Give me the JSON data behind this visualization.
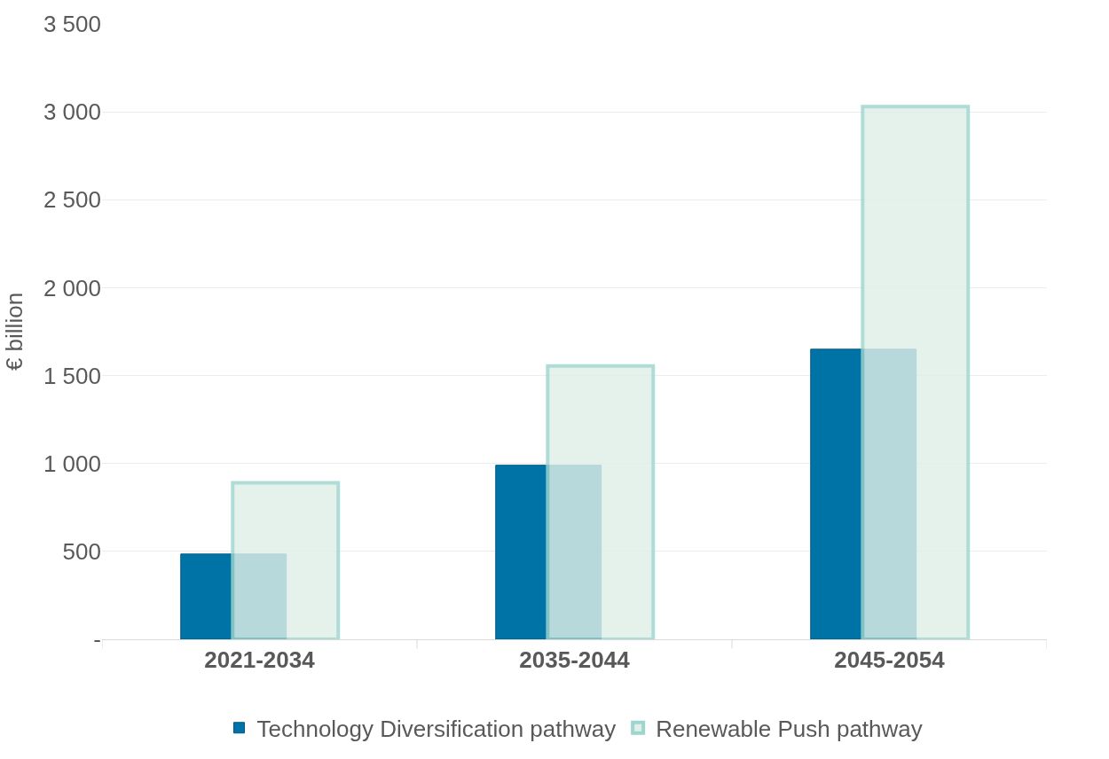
{
  "chart_data": {
    "type": "bar",
    "ylabel": "€ billion",
    "categories": [
      "2021-2034",
      "2035-2044",
      "2045-2054"
    ],
    "series": [
      {
        "name": "Technology Diversification pathway",
        "color": "#0073a6",
        "values": [
          485,
          990,
          1650
        ]
      },
      {
        "name": "Renewable Push pathway",
        "color": "#e0f0e9",
        "values": [
          890,
          1555,
          3030
        ]
      }
    ],
    "ylim": [
      0,
      3500
    ],
    "yticks": [
      {
        "value": 0,
        "label": "-"
      },
      {
        "value": 500,
        "label": "500"
      },
      {
        "value": 1000,
        "label": "1 000"
      },
      {
        "value": 1500,
        "label": "1 500"
      },
      {
        "value": 2000,
        "label": "2 000"
      },
      {
        "value": 2500,
        "label": "2 500"
      },
      {
        "value": 3000,
        "label": "3 000"
      },
      {
        "value": 3500,
        "label": "3 500"
      }
    ],
    "grid": "y",
    "legend": "bottom"
  }
}
